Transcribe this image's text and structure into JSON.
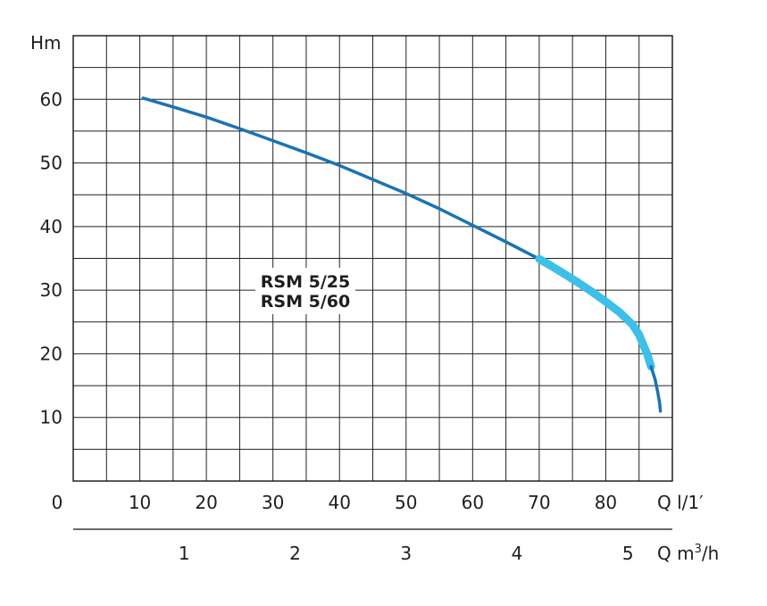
{
  "chart_data": {
    "type": "line",
    "title": "",
    "ylabel": "Hm",
    "xlabel": "Q l/1′",
    "x2label_main": "Q m",
    "x2label_sup": "3",
    "x2label_tail": "/h",
    "origin_label": "0",
    "xlim": [
      0,
      90
    ],
    "ylim": [
      0,
      70
    ],
    "grid": true,
    "y_ticks": [
      10,
      20,
      30,
      40,
      50,
      60
    ],
    "x_ticks": [
      10,
      20,
      30,
      40,
      50,
      60,
      70,
      80
    ],
    "x2_ticks": [
      1,
      2,
      3,
      4,
      5
    ],
    "series_label_lines": [
      "RSM 5/25",
      "RSM 5/60"
    ],
    "series": [
      {
        "color": "#1a73b4",
        "points": [
          [
            10.5,
            60.2
          ],
          [
            15,
            58.8
          ],
          [
            20,
            57.2
          ],
          [
            25,
            55.4
          ],
          [
            30,
            53.5
          ],
          [
            35,
            51.6
          ],
          [
            40,
            49.6
          ],
          [
            45,
            47.4
          ],
          [
            50,
            45.2
          ],
          [
            55,
            42.8
          ],
          [
            60,
            40.2
          ],
          [
            65,
            37.6
          ],
          [
            70,
            34.9
          ]
        ]
      },
      {
        "color": "#3dbfe8",
        "points": [
          [
            70,
            34.9
          ],
          [
            72,
            33.7
          ],
          [
            74,
            32.4
          ],
          [
            76,
            31.1
          ],
          [
            78,
            29.7
          ],
          [
            80,
            28.2
          ],
          [
            82,
            26.6
          ],
          [
            84,
            24.6
          ],
          [
            85,
            23.0
          ],
          [
            86.2,
            20.0
          ],
          [
            86.8,
            18.0
          ]
        ]
      },
      {
        "color": "#1a73b4",
        "points": [
          [
            86.8,
            18.0
          ],
          [
            87.4,
            16.0
          ],
          [
            87.8,
            14.0
          ],
          [
            88.1,
            12.2
          ],
          [
            88.2,
            11.0
          ]
        ]
      }
    ]
  }
}
